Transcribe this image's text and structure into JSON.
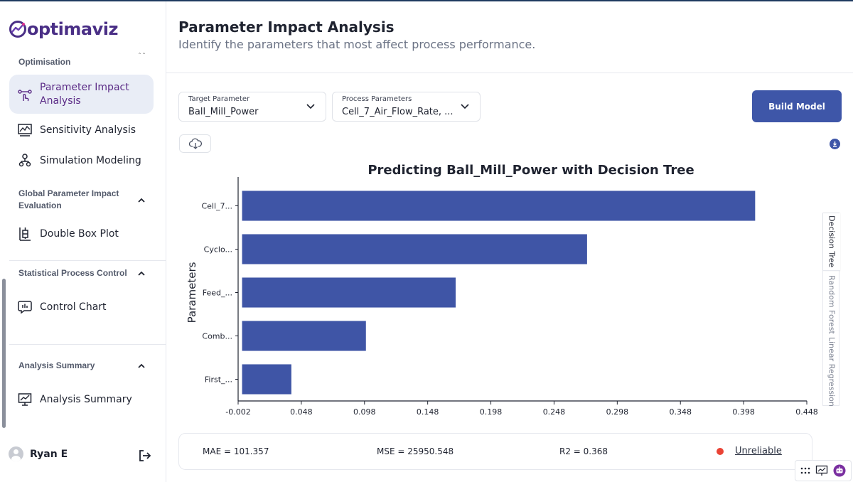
{
  "brand": {
    "name": "optimaviz",
    "color": "#4a2f86"
  },
  "sidebar": {
    "groups": [
      {
        "label": "Optimisation"
      },
      {
        "label": "Global Parameter Impact Evaluation"
      },
      {
        "label": "Statistical Process Control"
      },
      {
        "label": "Analysis Summary"
      }
    ],
    "items": [
      {
        "label": "Parameter Impact Analysis",
        "icon": "parameter-impact-icon",
        "active": true
      },
      {
        "label": "Sensitivity Analysis",
        "icon": "sensitivity-icon"
      },
      {
        "label": "Simulation Modeling",
        "icon": "simulation-icon"
      },
      {
        "label": "Double Box Plot",
        "icon": "box-plot-icon"
      },
      {
        "label": "Control Chart",
        "icon": "control-chart-icon"
      },
      {
        "label": "Analysis Summary",
        "icon": "analysis-summary-icon"
      }
    ],
    "user": {
      "name": "Ryan E"
    }
  },
  "header": {
    "title": "Parameter Impact Analysis",
    "subtitle": "Identify the parameters that most affect process performance."
  },
  "controls": {
    "target": {
      "label": "Target Parameter",
      "value": "Ball_Mill_Power"
    },
    "process": {
      "label": "Process Parameters",
      "value": "Cell_7_Air_Flow_Rate, ..."
    },
    "build_label": "Build Model"
  },
  "chart_data": {
    "type": "bar",
    "orientation": "horizontal",
    "title": "Predicting Ball_Mill_Power with Decision Tree",
    "ylabel": "Parameters",
    "xlabel": "",
    "categories": [
      "Cell_7...",
      "Cyclo...",
      "Feed_...",
      "Comb...",
      "First_..."
    ],
    "values": [
      0.406,
      0.273,
      0.169,
      0.098,
      0.039
    ],
    "xlim": [
      -0.002,
      0.448
    ],
    "xticks": [
      "-0.002",
      "0.048",
      "0.098",
      "0.148",
      "0.198",
      "0.248",
      "0.298",
      "0.348",
      "0.398",
      "0.448"
    ],
    "bar_color": "#3f55a6"
  },
  "model_tabs": [
    {
      "label": "Decision Tree",
      "active": true
    },
    {
      "label": "Random Forest"
    },
    {
      "label": "Linear Regression"
    }
  ],
  "metrics": {
    "mae": "MAE = 101.357",
    "mse": "MSE = 25950.548",
    "r2": "R2 = 0.368",
    "status": "Unreliable",
    "status_color": "#ea4335"
  }
}
